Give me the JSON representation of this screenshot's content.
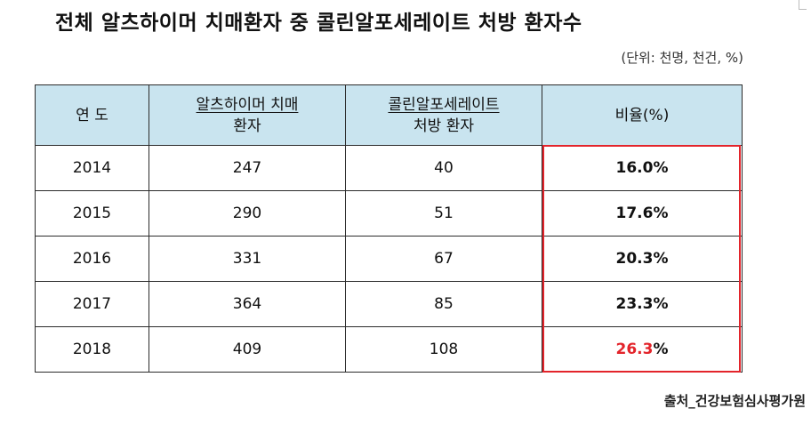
{
  "title": "전체 알츠하이머 치매환자 중 콜린알포세레이트 처방 환자수",
  "unit_note": "(단위: 천명, 천건, %)",
  "table": {
    "headers": {
      "year": "연 도",
      "dementia_line1": "알츠하이머 치매",
      "dementia_line2": "환자",
      "prescription_line1": "콜린알포세레이트",
      "prescription_line2": "처방 환자",
      "ratio": "비율(%)"
    },
    "rows": [
      {
        "year": "2014",
        "dementia": "247",
        "prescription": "40",
        "ratio": "16.0%"
      },
      {
        "year": "2015",
        "dementia": "290",
        "prescription": "51",
        "ratio": "17.6%"
      },
      {
        "year": "2016",
        "dementia": "331",
        "prescription": "67",
        "ratio": "20.3%"
      },
      {
        "year": "2017",
        "dementia": "364",
        "prescription": "85",
        "ratio": "23.3%"
      },
      {
        "year": "2018",
        "dementia": "409",
        "prescription": "108",
        "ratio_highlight": "26.3",
        "ratio_suffix": "%"
      }
    ]
  },
  "colors": {
    "header_bg": "#c9e4ef",
    "highlight_border": "#e3242b",
    "highlight_text": "#e3242b"
  },
  "source": "출처_건강보험심사평가원"
}
